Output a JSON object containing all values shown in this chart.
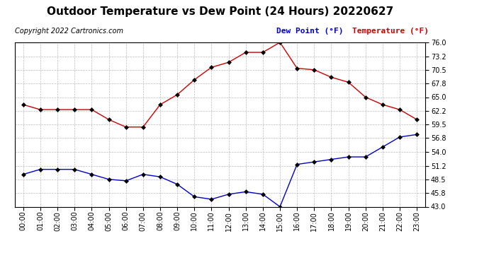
{
  "title": "Outdoor Temperature vs Dew Point (24 Hours) 20220627",
  "copyright": "Copyright 2022 Cartronics.com",
  "legend_dew": "Dew Point (°F)",
  "legend_temp": "Temperature (°F)",
  "hours": [
    "00:00",
    "01:00",
    "02:00",
    "03:00",
    "04:00",
    "05:00",
    "06:00",
    "07:00",
    "08:00",
    "09:00",
    "10:00",
    "11:00",
    "12:00",
    "13:00",
    "14:00",
    "15:00",
    "16:00",
    "17:00",
    "18:00",
    "19:00",
    "20:00",
    "21:00",
    "22:00",
    "23:00"
  ],
  "temperature": [
    63.5,
    62.5,
    62.5,
    62.5,
    62.5,
    60.5,
    59.0,
    59.0,
    63.5,
    65.5,
    68.5,
    71.0,
    72.0,
    74.0,
    74.0,
    76.0,
    70.8,
    70.5,
    69.0,
    68.0,
    65.0,
    63.5,
    62.5,
    60.5
  ],
  "dew_point": [
    49.5,
    50.5,
    50.5,
    50.5,
    49.5,
    48.5,
    48.2,
    49.5,
    49.0,
    47.5,
    45.0,
    44.5,
    45.5,
    46.0,
    45.5,
    43.0,
    51.5,
    52.0,
    52.5,
    53.0,
    53.0,
    55.0,
    57.0,
    57.5
  ],
  "ylim_min": 43.0,
  "ylim_max": 76.0,
  "yticks": [
    43.0,
    45.8,
    48.5,
    51.2,
    54.0,
    56.8,
    59.5,
    62.2,
    65.0,
    67.8,
    70.5,
    73.2,
    76.0
  ],
  "temp_color": "#cc0000",
  "dew_color": "#0000cc",
  "bg_color": "#ffffff",
  "grid_color": "#bbbbbb",
  "title_fontsize": 11,
  "tick_fontsize": 7,
  "legend_fontsize": 8,
  "copyright_fontsize": 7
}
